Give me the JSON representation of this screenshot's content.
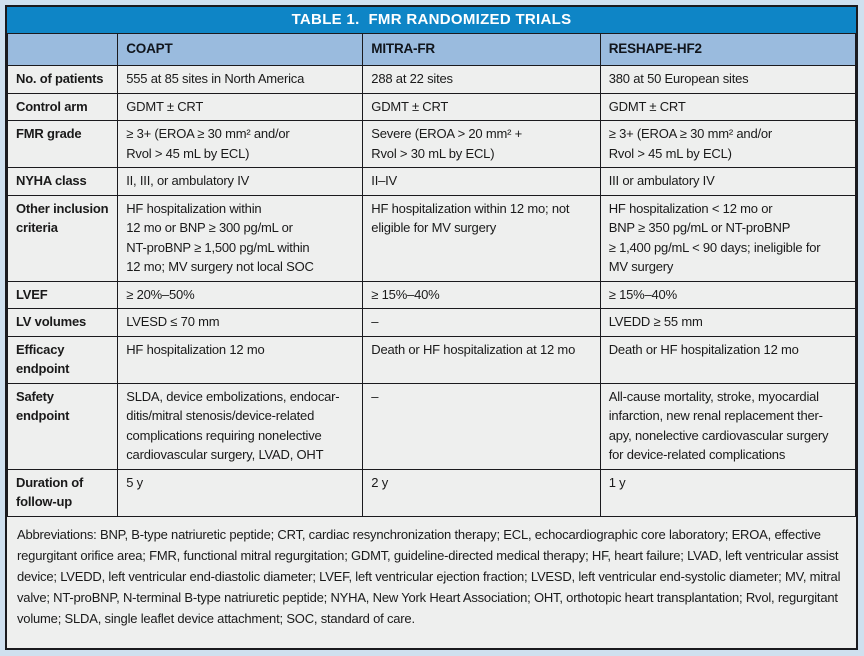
{
  "title": "TABLE 1.  FMR RANDOMIZED TRIALS",
  "colors": {
    "title_bar": "#0e85c6",
    "title_text": "#ffffff",
    "header_bg": "#9abbde",
    "cell_bg": "#eeefee",
    "border": "#1a1a1e",
    "outer_frame": "#cfe0ef"
  },
  "columns": [
    "",
    "COAPT",
    "MITRA-FR",
    "RESHAPE-HF2"
  ],
  "rows": [
    {
      "label": "No. of patients",
      "cells": [
        "555 at 85 sites in North America",
        "288 at 22 sites",
        "380 at 50 European sites"
      ]
    },
    {
      "label": "Control arm",
      "cells": [
        "GDMT ± CRT",
        "GDMT ± CRT",
        "GDMT ± CRT"
      ]
    },
    {
      "label": "FMR grade",
      "cells": [
        "≥ 3+ (EROA ≥ 30 mm² and/or\nRvol > 45 mL by ECL)",
        "Severe (EROA > 20 mm² +\nRvol > 30 mL by ECL)",
        "≥ 3+ (EROA ≥ 30 mm² and/or\nRvol > 45 mL by ECL)"
      ]
    },
    {
      "label": "NYHA class",
      "cells": [
        "II, III, or ambulatory IV",
        "II–IV",
        "III or ambulatory IV"
      ]
    },
    {
      "label": "Other inclusion criteria",
      "cells": [
        "HF hospitalization within\n12 mo or BNP ≥ 300 pg/mL or\nNT-proBNP ≥ 1,500 pg/mL within\n12 mo; MV surgery not local SOC",
        "HF hospitalization within 12 mo; not\neligible for MV surgery",
        "HF hospitalization < 12 mo or\nBNP ≥ 350 pg/mL or NT-proBNP\n≥ 1,400 pg/mL < 90 days; ineligible for\nMV surgery"
      ]
    },
    {
      "label": "LVEF",
      "cells": [
        "≥ 20%–50%",
        "≥ 15%–40%",
        "≥ 15%–40%"
      ]
    },
    {
      "label": "LV volumes",
      "cells": [
        "LVESD ≤ 70 mm",
        "–",
        "LVEDD ≥ 55 mm"
      ]
    },
    {
      "label": "Efficacy endpoint",
      "cells": [
        "HF hospitalization 12 mo",
        "Death or HF hospitalization at 12 mo",
        "Death or HF hospitalization 12 mo"
      ]
    },
    {
      "label": "Safety endpoint",
      "cells": [
        "SLDA, device embolizations, endocar-\nditis/mitral stenosis/device-related\ncomplications requiring nonelective\ncardiovascular surgery, LVAD, OHT",
        "–",
        "All-cause mortality, stroke, myocardial\ninfarction, new renal replacement ther-\napy, nonelective cardiovascular surgery\nfor device-related complications"
      ]
    },
    {
      "label": "Duration of follow-up",
      "cells": [
        "5 y",
        "2 y",
        "1 y"
      ]
    }
  ],
  "footnote": "Abbreviations: BNP, B-type natriuretic peptide; CRT, cardiac resynchronization therapy; ECL, echocardiographic core laboratory; EROA, effective regurgitant orifice area; FMR, functional mitral regurgitation; GDMT, guideline-directed medical therapy; HF, heart failure; LVAD, left ventricular assist device; LVEDD, left ventricular end-diastolic diameter; LVEF, left ventricular ejection fraction; LVESD, left ventricular end-systolic diameter; MV, mitral valve; NT-proBNP, N-terminal B-type natriuretic peptide; NYHA, New York Heart Association; OHT, orthotopic heart transplantation; Rvol, regurgitant volume; SLDA, single leaflet device attachment; SOC, standard of care."
}
